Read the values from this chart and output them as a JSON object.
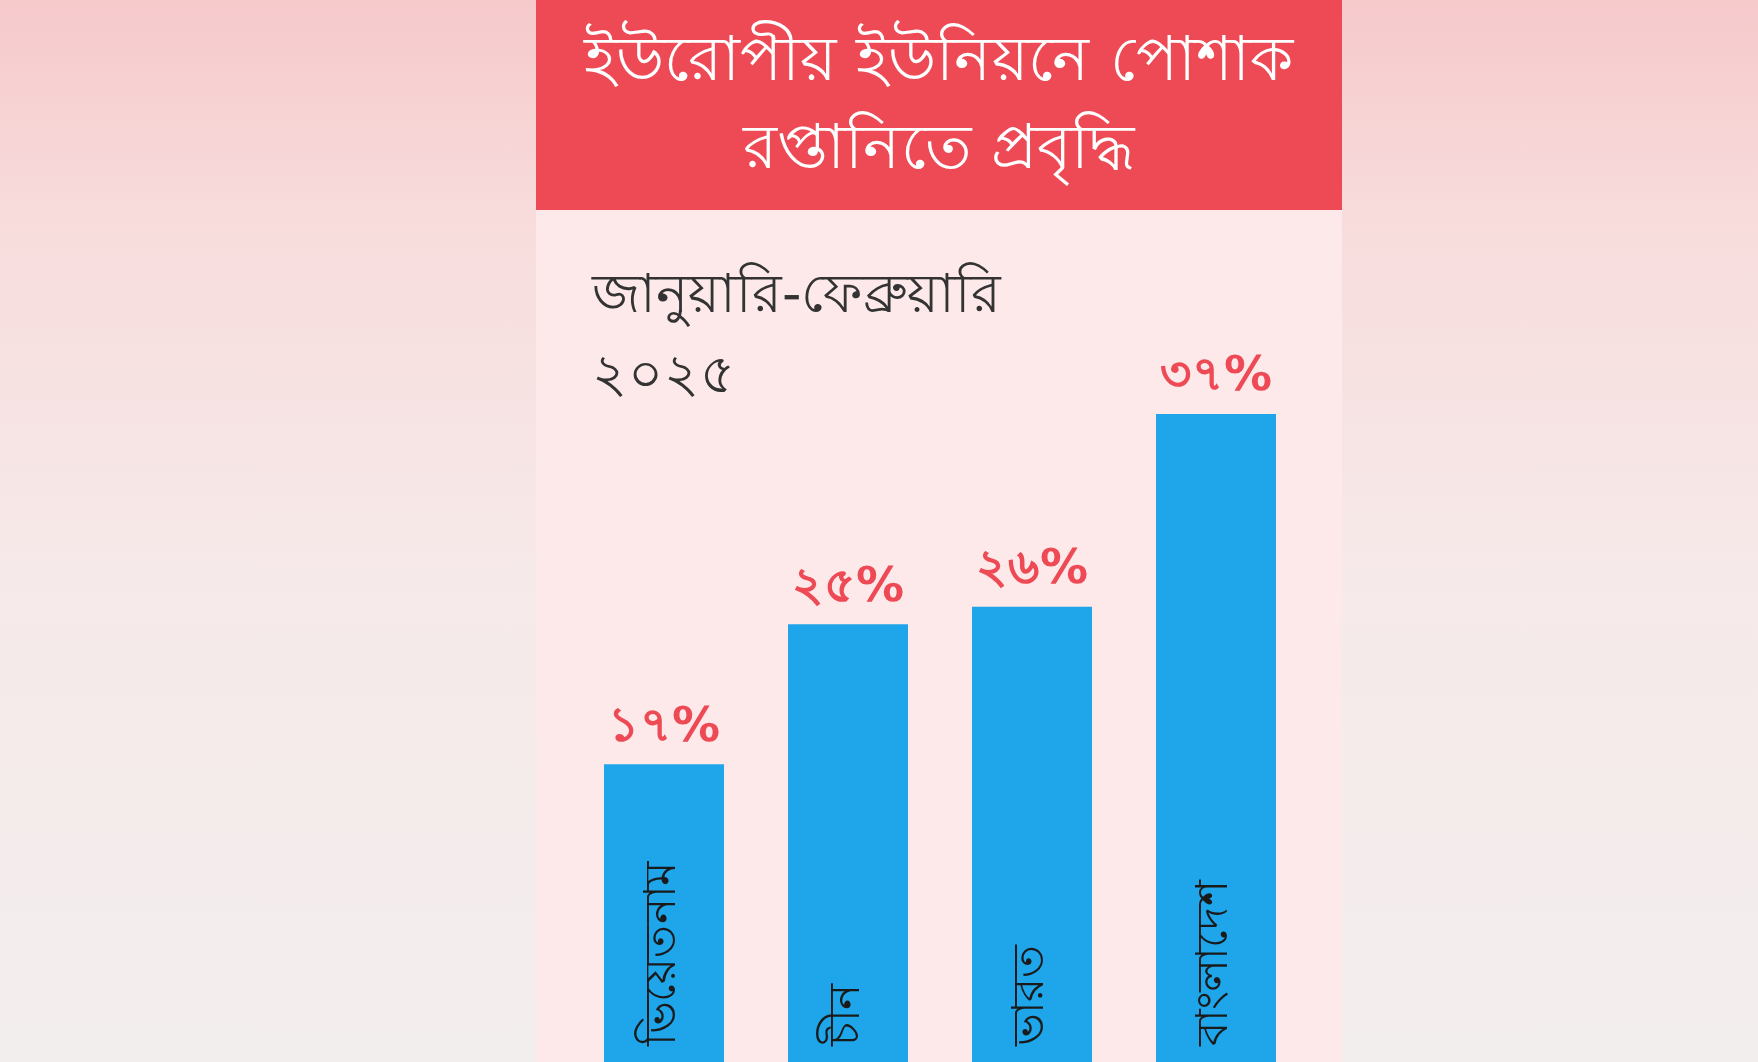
{
  "chart_data": {
    "type": "bar",
    "title": "ইউরোপীয় ইউনিয়নে পোশাক রপ্তানিতে প্রবৃদ্ধি",
    "subtitle": "জানুয়ারি-ফেব্রুয়ারি ২০২৫",
    "categories": [
      "ভিয়েতনাম",
      "চীন",
      "ভারত",
      "বাংলাদেশ"
    ],
    "values": [
      17,
      25,
      26,
      37
    ],
    "value_labels": [
      "১৭%",
      "২৫%",
      "২৬%",
      "৩৭%"
    ],
    "color": "#1ea5ea"
  }
}
